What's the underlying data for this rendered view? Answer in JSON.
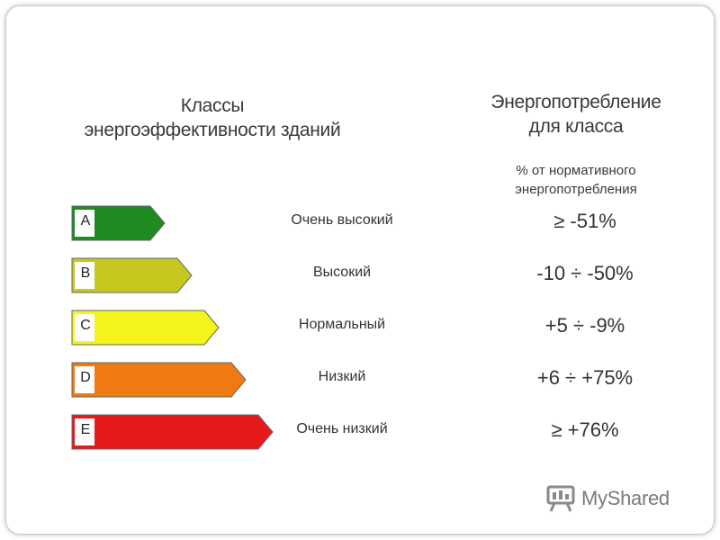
{
  "left_heading": [
    "Классы",
    "энергоэффективности зданий"
  ],
  "right_heading": [
    "Энергопотребление",
    "для класса"
  ],
  "subheading": [
    "% от нормативного",
    "энергопотребления"
  ],
  "classes": [
    {
      "letter": "A",
      "label": "Очень высокий",
      "value": "≥ -51%",
      "color": "#1f8a1f"
    },
    {
      "letter": "B",
      "label": "Высокий",
      "value": "-10 ÷ -50%",
      "color": "#c6c820"
    },
    {
      "letter": "C",
      "label": "Нормальный",
      "value": "+5 ÷ -9%",
      "color": "#f4f41a"
    },
    {
      "letter": "D",
      "label": "Низкий",
      "value": "+6 ÷ +75%",
      "color": "#f07a12"
    },
    {
      "letter": "E",
      "label": "Очень низкий",
      "value": "≥ +76%",
      "color": "#e61a1a"
    }
  ],
  "watermark": {
    "text": "MyShared",
    "icon": "presentation-board-icon"
  }
}
